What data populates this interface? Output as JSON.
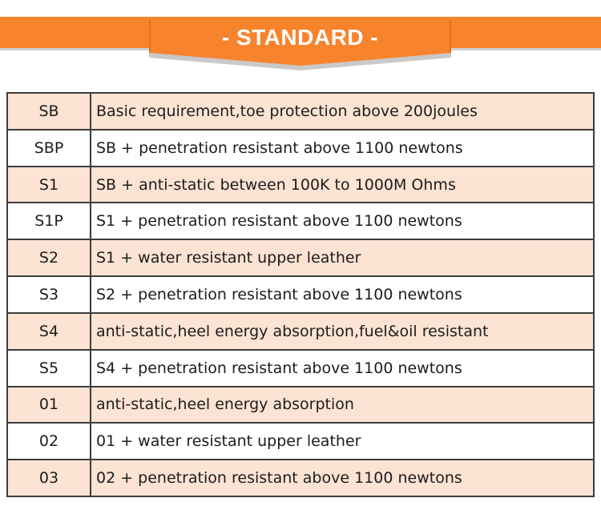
{
  "banner": {
    "title": "- STANDARD -",
    "bar_color": "#F8832D",
    "ribbon_shadow_color": "#C9C9C9",
    "title_color": "#FFFFFF"
  },
  "table": {
    "stripe_color": "#FCE3D3",
    "border_color": "#333333",
    "text_color": "#1C1C1C",
    "columns": [
      "code",
      "description"
    ],
    "rows": [
      {
        "code": "SB",
        "description": "Basic requirement,toe protection above 200joules"
      },
      {
        "code": "SBP",
        "description": "SB + penetration resistant above 1100 newtons"
      },
      {
        "code": "S1",
        "description": "SB + anti-static between 100K to 1000M Ohms"
      },
      {
        "code": "S1P",
        "description": "S1 + penetration resistant above 1100 newtons"
      },
      {
        "code": "S2",
        "description": "S1 + water resistant upper leather"
      },
      {
        "code": "S3",
        "description": "S2 + penetration resistant above 1100 newtons"
      },
      {
        "code": "S4",
        "description": "anti-static,heel energy absorption,fuel&oil resistant"
      },
      {
        "code": "S5",
        "description": "S4 + penetration resistant above 1100 newtons"
      },
      {
        "code": "01",
        "description": "anti-static,heel energy absorption"
      },
      {
        "code": "02",
        "description": "01 + water resistant upper leather"
      },
      {
        "code": "03",
        "description": "02 + penetration resistant above 1100 newtons"
      }
    ]
  }
}
